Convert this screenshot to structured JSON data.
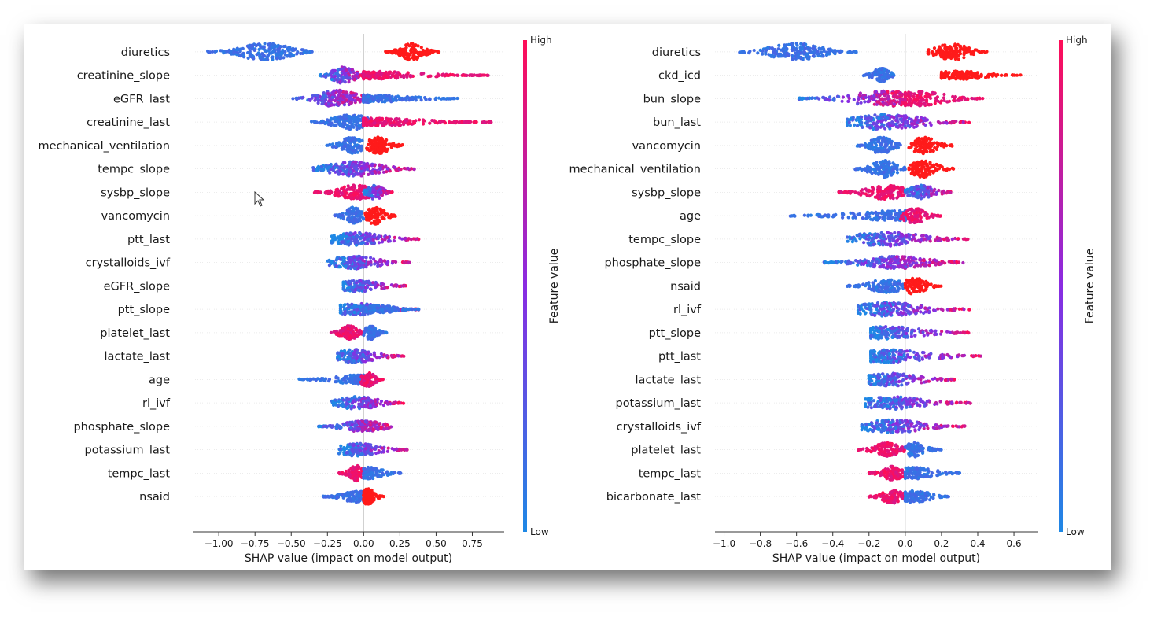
{
  "colors": {
    "low": "#1e88e5",
    "mid": "#8a2be2",
    "high": "#ff0d57",
    "red": "#ff1a1a"
  },
  "chart_data": [
    {
      "type": "scatter",
      "subtype": "shap-beeswarm",
      "xlabel": "SHAP value (impact on model output)",
      "ylabel": "",
      "xlim": [
        -1.18,
        0.97
      ],
      "xticks": [
        -1.0,
        -0.75,
        -0.5,
        -0.25,
        0.0,
        0.25,
        0.5,
        0.75
      ],
      "xtick_labels": [
        "−1.00",
        "−0.75",
        "−0.50",
        "−0.25",
        "0.00",
        "0.25",
        "0.50",
        "0.75"
      ],
      "colorbar": {
        "label": "Feature value",
        "high": "High",
        "low": "Low"
      },
      "features": [
        {
          "name": "diuretics",
          "segments": [
            {
              "from": -1.08,
              "to": -0.35,
              "peak": -0.68,
              "color": "low",
              "width": 1.0
            },
            {
              "from": 0.15,
              "to": 0.52,
              "peak": 0.33,
              "color": "red",
              "width": 1.0
            }
          ]
        },
        {
          "name": "creatinine_slope",
          "segments": [
            {
              "from": -0.3,
              "to": 0.04,
              "peak": -0.14,
              "color": "mix",
              "width": 1.0
            },
            {
              "from": 0.0,
              "to": 0.86,
              "peak": 0.05,
              "color": "high",
              "width": 0.45
            }
          ]
        },
        {
          "name": "eGFR_last",
          "segments": [
            {
              "from": -0.49,
              "to": 0.05,
              "peak": -0.18,
              "color": "mix",
              "width": 1.0
            },
            {
              "from": 0.0,
              "to": 0.66,
              "peak": 0.05,
              "color": "low",
              "width": 0.45
            }
          ]
        },
        {
          "name": "creatinine_last",
          "segments": [
            {
              "from": -0.36,
              "to": 0.04,
              "peak": -0.09,
              "color": "low",
              "width": 0.95
            },
            {
              "from": 0.0,
              "to": 0.88,
              "peak": 0.05,
              "color": "high",
              "width": 0.45
            }
          ]
        },
        {
          "name": "mechanical_ventilation",
          "segments": [
            {
              "from": -0.26,
              "to": -0.01,
              "peak": -0.08,
              "color": "low",
              "width": 1.0
            },
            {
              "from": 0.02,
              "to": 0.27,
              "peak": 0.1,
              "color": "red",
              "width": 1.0
            }
          ]
        },
        {
          "name": "tempc_slope",
          "segments": [
            {
              "from": -0.35,
              "to": 0.35,
              "peak": -0.06,
              "color": "mix",
              "width": 0.9
            }
          ]
        },
        {
          "name": "sysbp_slope",
          "segments": [
            {
              "from": -0.34,
              "to": 0.2,
              "peak": -0.05,
              "color": "high",
              "width": 0.85
            },
            {
              "from": 0.0,
              "to": 0.2,
              "peak": 0.08,
              "color": "mix",
              "width": 0.85
            }
          ]
        },
        {
          "name": "vancomycin",
          "segments": [
            {
              "from": -0.2,
              "to": 0.0,
              "peak": -0.07,
              "color": "low",
              "width": 1.0
            },
            {
              "from": 0.01,
              "to": 0.23,
              "peak": 0.08,
              "color": "red",
              "width": 1.0
            }
          ]
        },
        {
          "name": "ptt_last",
          "segments": [
            {
              "from": -0.22,
              "to": 0.38,
              "peak": -0.05,
              "color": "mix",
              "width": 0.75
            }
          ]
        },
        {
          "name": "crystalloids_ivf",
          "segments": [
            {
              "from": -0.25,
              "to": 0.32,
              "peak": -0.06,
              "color": "mix",
              "width": 0.75
            }
          ]
        },
        {
          "name": "eGFR_slope",
          "segments": [
            {
              "from": -0.14,
              "to": 0.3,
              "peak": -0.05,
              "color": "mix",
              "width": 0.7
            }
          ]
        },
        {
          "name": "ptt_slope",
          "segments": [
            {
              "from": -0.16,
              "to": 0.38,
              "peak": -0.05,
              "color": "mix",
              "width": 0.7
            },
            {
              "from": 0.0,
              "to": 0.38,
              "peak": 0.1,
              "color": "low",
              "width": 0.45
            }
          ]
        },
        {
          "name": "platelet_last",
          "segments": [
            {
              "from": -0.23,
              "to": 0.0,
              "peak": -0.1,
              "color": "high",
              "width": 0.85
            },
            {
              "from": 0.0,
              "to": 0.16,
              "peak": 0.05,
              "color": "low",
              "width": 0.85
            }
          ]
        },
        {
          "name": "lactate_last",
          "segments": [
            {
              "from": -0.18,
              "to": 0.28,
              "peak": -0.05,
              "color": "mix",
              "width": 0.8
            }
          ]
        },
        {
          "name": "age",
          "segments": [
            {
              "from": -0.45,
              "to": 0.0,
              "peak": -0.02,
              "color": "low",
              "width": 0.55
            },
            {
              "from": -0.02,
              "to": 0.14,
              "peak": 0.03,
              "color": "high",
              "width": 0.85
            }
          ]
        },
        {
          "name": "rl_ivf",
          "segments": [
            {
              "from": -0.22,
              "to": 0.28,
              "peak": -0.04,
              "color": "mix",
              "width": 0.75
            }
          ]
        },
        {
          "name": "phosphate_slope",
          "segments": [
            {
              "from": -0.32,
              "to": 0.22,
              "peak": 0.0,
              "color": "mix",
              "width": 0.65
            }
          ]
        },
        {
          "name": "potassium_last",
          "segments": [
            {
              "from": -0.17,
              "to": 0.3,
              "peak": -0.04,
              "color": "mix",
              "width": 0.75
            }
          ]
        },
        {
          "name": "tempc_last",
          "segments": [
            {
              "from": -0.17,
              "to": 0.0,
              "peak": -0.05,
              "color": "high",
              "width": 0.9
            },
            {
              "from": 0.0,
              "to": 0.26,
              "peak": 0.04,
              "color": "low",
              "width": 0.7
            }
          ]
        },
        {
          "name": "nsaid",
          "segments": [
            {
              "from": -0.28,
              "to": 0.0,
              "peak": -0.04,
              "color": "low",
              "width": 0.7
            },
            {
              "from": 0.0,
              "to": 0.14,
              "peak": 0.03,
              "color": "red",
              "width": 0.95
            }
          ]
        }
      ]
    },
    {
      "type": "scatter",
      "subtype": "shap-beeswarm",
      "xlabel": "SHAP value (impact on model output)",
      "ylabel": "",
      "xlim": [
        -1.05,
        0.73
      ],
      "xticks": [
        -1.0,
        -0.8,
        -0.6,
        -0.4,
        -0.2,
        0.0,
        0.2,
        0.4,
        0.6
      ],
      "xtick_labels": [
        "−1.0",
        "−0.8",
        "−0.6",
        "−0.4",
        "−0.2",
        "0.0",
        "0.2",
        "0.4",
        "0.6"
      ],
      "colorbar": {
        "label": "Feature value",
        "high": "High",
        "low": "Low"
      },
      "features": [
        {
          "name": "diuretics",
          "segments": [
            {
              "from": -0.93,
              "to": -0.27,
              "peak": -0.6,
              "color": "low",
              "width": 1.0
            },
            {
              "from": 0.12,
              "to": 0.46,
              "peak": 0.26,
              "color": "red",
              "width": 1.0
            }
          ]
        },
        {
          "name": "ckd_icd",
          "segments": [
            {
              "from": -0.23,
              "to": -0.06,
              "peak": -0.13,
              "color": "low",
              "width": 0.9
            },
            {
              "from": 0.2,
              "to": 0.64,
              "peak": 0.3,
              "color": "red",
              "width": 0.5
            }
          ]
        },
        {
          "name": "bun_slope",
          "segments": [
            {
              "from": -0.59,
              "to": 0.0,
              "peak": -0.1,
              "color": "mix",
              "width": 0.9
            },
            {
              "from": 0.0,
              "to": 0.43,
              "peak": 0.06,
              "color": "high",
              "width": 0.9
            }
          ]
        },
        {
          "name": "bun_last",
          "segments": [
            {
              "from": -0.32,
              "to": 0.36,
              "peak": -0.1,
              "color": "mix",
              "width": 0.9
            }
          ]
        },
        {
          "name": "vancomycin",
          "segments": [
            {
              "from": -0.27,
              "to": 0.0,
              "peak": -0.13,
              "color": "low",
              "width": 1.0
            },
            {
              "from": 0.02,
              "to": 0.26,
              "peak": 0.1,
              "color": "red",
              "width": 1.0
            }
          ]
        },
        {
          "name": "mechanical_ventilation",
          "segments": [
            {
              "from": -0.28,
              "to": 0.0,
              "peak": -0.12,
              "color": "low",
              "width": 1.0
            },
            {
              "from": 0.02,
              "to": 0.27,
              "peak": 0.1,
              "color": "red",
              "width": 1.0
            }
          ]
        },
        {
          "name": "sysbp_slope",
          "segments": [
            {
              "from": -0.37,
              "to": 0.0,
              "peak": -0.1,
              "color": "high",
              "width": 0.85
            },
            {
              "from": 0.0,
              "to": 0.26,
              "peak": 0.09,
              "color": "mix",
              "width": 0.85
            }
          ]
        },
        {
          "name": "age",
          "segments": [
            {
              "from": -0.65,
              "to": 0.0,
              "peak": -0.03,
              "color": "low",
              "width": 0.6
            },
            {
              "from": -0.03,
              "to": 0.2,
              "peak": 0.05,
              "color": "high",
              "width": 0.9
            }
          ]
        },
        {
          "name": "tempc_slope",
          "segments": [
            {
              "from": -0.32,
              "to": 0.35,
              "peak": -0.1,
              "color": "mix",
              "width": 0.85
            }
          ]
        },
        {
          "name": "phosphate_slope",
          "segments": [
            {
              "from": -0.45,
              "to": 0.32,
              "peak": -0.05,
              "color": "mix",
              "width": 0.75
            }
          ]
        },
        {
          "name": "nsaid",
          "segments": [
            {
              "from": -0.32,
              "to": -0.01,
              "peak": -0.1,
              "color": "low",
              "width": 0.8
            },
            {
              "from": 0.0,
              "to": 0.2,
              "peak": 0.05,
              "color": "red",
              "width": 1.0
            }
          ]
        },
        {
          "name": "rl_ivf",
          "segments": [
            {
              "from": -0.26,
              "to": 0.36,
              "peak": -0.09,
              "color": "mix",
              "width": 0.8
            }
          ]
        },
        {
          "name": "ptt_slope",
          "segments": [
            {
              "from": -0.19,
              "to": 0.35,
              "peak": -0.1,
              "color": "mix",
              "width": 0.75
            }
          ]
        },
        {
          "name": "ptt_last",
          "segments": [
            {
              "from": -0.19,
              "to": 0.42,
              "peak": -0.09,
              "color": "mix",
              "width": 0.75
            }
          ]
        },
        {
          "name": "lactate_last",
          "segments": [
            {
              "from": -0.2,
              "to": 0.28,
              "peak": -0.09,
              "color": "mix",
              "width": 0.8
            }
          ]
        },
        {
          "name": "potassium_last",
          "segments": [
            {
              "from": -0.22,
              "to": 0.36,
              "peak": -0.08,
              "color": "mix",
              "width": 0.75
            }
          ]
        },
        {
          "name": "crystalloids_ivf",
          "segments": [
            {
              "from": -0.24,
              "to": 0.33,
              "peak": -0.07,
              "color": "mix",
              "width": 0.75
            }
          ]
        },
        {
          "name": "platelet_last",
          "segments": [
            {
              "from": -0.26,
              "to": 0.0,
              "peak": -0.1,
              "color": "high",
              "width": 0.85
            },
            {
              "from": 0.0,
              "to": 0.2,
              "peak": 0.05,
              "color": "low",
              "width": 0.85
            }
          ]
        },
        {
          "name": "tempc_last",
          "segments": [
            {
              "from": -0.2,
              "to": 0.0,
              "peak": -0.07,
              "color": "high",
              "width": 0.85
            },
            {
              "from": 0.0,
              "to": 0.31,
              "peak": 0.05,
              "color": "low",
              "width": 0.7
            }
          ]
        },
        {
          "name": "bicarbonate_last",
          "segments": [
            {
              "from": -0.2,
              "to": 0.0,
              "peak": -0.07,
              "color": "high",
              "width": 0.8
            },
            {
              "from": 0.0,
              "to": 0.25,
              "peak": 0.05,
              "color": "low",
              "width": 0.7
            }
          ]
        }
      ]
    }
  ]
}
